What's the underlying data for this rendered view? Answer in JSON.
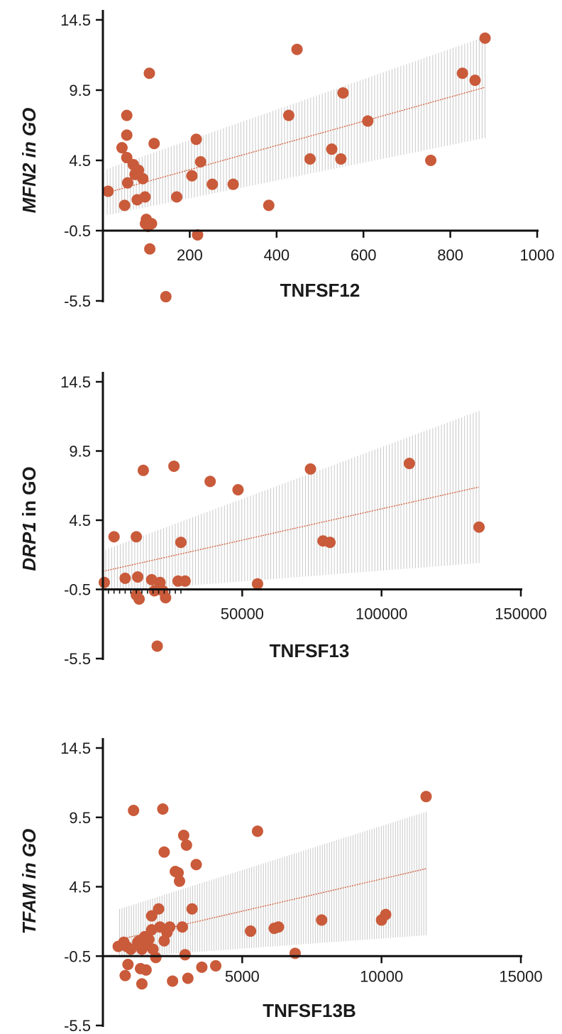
{
  "colors": {
    "point": "#c95a3a",
    "fit": "#d35b38",
    "band": "#c8c8c8",
    "axis": "#111111"
  },
  "chart_data": [
    {
      "type": "scatter",
      "ylabel_italic": "MFN2 in GO",
      "ylabel_plain": "",
      "xlabel": "TNFSF12",
      "xlim": [
        0,
        1000
      ],
      "ylim": [
        -5.5,
        14.5
      ],
      "x_crosses_y_at": -0.5,
      "yticks": [
        14.5,
        9.5,
        4.5,
        -0.5,
        -5.5
      ],
      "ytick_labels": [
        "14.5",
        "9.5",
        "4.5",
        "-0.5",
        "-5.5"
      ],
      "xticks": [
        200,
        400,
        600,
        800,
        1000
      ],
      "xtick_labels": [
        "200",
        "400",
        "600",
        "800",
        "1000"
      ],
      "minor_xticks": [],
      "fit": {
        "x": [
          10,
          880
        ],
        "y": [
          2.2,
          9.7
        ],
        "ci_low_start": 0.6,
        "ci_high_start": 3.9,
        "ci_low_end": 6.1,
        "ci_high_end": 13.3
      },
      "points": [
        [
          12,
          2.3
        ],
        [
          44,
          5.4
        ],
        [
          50,
          1.3
        ],
        [
          55,
          7.7
        ],
        [
          55,
          6.3
        ],
        [
          55,
          4.7
        ],
        [
          57,
          2.9
        ],
        [
          70,
          4.2
        ],
        [
          74,
          3.5
        ],
        [
          79,
          1.7
        ],
        [
          82,
          3.8
        ],
        [
          92,
          3.2
        ],
        [
          97,
          1.9
        ],
        [
          98,
          0.0
        ],
        [
          100,
          0.3
        ],
        [
          104,
          -0.2
        ],
        [
          107,
          10.7
        ],
        [
          108,
          -1.8
        ],
        [
          112,
          0.0
        ],
        [
          118,
          5.7
        ],
        [
          145,
          -5.2
        ],
        [
          170,
          1.9
        ],
        [
          205,
          3.4
        ],
        [
          215,
          6.0
        ],
        [
          218,
          -0.8
        ],
        [
          225,
          4.4
        ],
        [
          252,
          2.8
        ],
        [
          300,
          2.8
        ],
        [
          382,
          1.3
        ],
        [
          428,
          7.7
        ],
        [
          447,
          12.4
        ],
        [
          477,
          4.6
        ],
        [
          527,
          5.3
        ],
        [
          548,
          4.6
        ],
        [
          553,
          9.3
        ],
        [
          610,
          7.3
        ],
        [
          755,
          4.5
        ],
        [
          828,
          10.7
        ],
        [
          857,
          10.2
        ],
        [
          880,
          13.2
        ]
      ]
    },
    {
      "type": "scatter",
      "ylabel_italic": "DRP1",
      "ylabel_plain": " in GO",
      "xlabel": "TNFSF13",
      "xlim": [
        0,
        150000
      ],
      "ylim": [
        -5.5,
        14.5
      ],
      "x_crosses_y_at": -0.5,
      "yticks": [
        14.5,
        9.5,
        4.5,
        -0.5,
        -5.5
      ],
      "ytick_labels": [
        "14.5",
        "9.5",
        "4.5",
        "-0.5",
        "-5.5"
      ],
      "xticks": [
        50000,
        100000,
        150000
      ],
      "xtick_labels": [
        "50000",
        "100000",
        "150000"
      ],
      "minor_xticks": [
        2000,
        4000,
        6000,
        8000,
        10000,
        12000,
        14000,
        16000,
        18000,
        20000,
        22000,
        24000,
        26000,
        28000
      ],
      "fit": {
        "x": [
          0,
          135000
        ],
        "y": [
          0.8,
          6.9
        ],
        "ci_low_start": -0.7,
        "ci_high_start": 2.3,
        "ci_low_end": 1.4,
        "ci_high_end": 12.4
      },
      "points": [
        [
          500,
          0.0
        ],
        [
          4000,
          3.3
        ],
        [
          8000,
          0.3
        ],
        [
          12000,
          3.3
        ],
        [
          12000,
          -0.9
        ],
        [
          12500,
          0.4
        ],
        [
          13000,
          -1.2
        ],
        [
          14500,
          8.1
        ],
        [
          17500,
          0.2
        ],
        [
          18500,
          -0.6
        ],
        [
          19500,
          -4.6
        ],
        [
          20000,
          -0.5
        ],
        [
          20500,
          0.0
        ],
        [
          21500,
          -0.6
        ],
        [
          22500,
          -1.1
        ],
        [
          25500,
          8.4
        ],
        [
          27000,
          0.1
        ],
        [
          28000,
          2.9
        ],
        [
          29500,
          0.1
        ],
        [
          38500,
          7.3
        ],
        [
          48500,
          6.7
        ],
        [
          55500,
          -0.1
        ],
        [
          74500,
          8.2
        ],
        [
          79000,
          3.0
        ],
        [
          81500,
          2.9
        ],
        [
          110000,
          8.6
        ],
        [
          135000,
          4.0
        ]
      ]
    },
    {
      "type": "scatter",
      "ylabel_italic": "TFAM in GO",
      "ylabel_plain": "",
      "xlabel": "TNFSF13B",
      "xlim": [
        0,
        15000
      ],
      "ylim": [
        -5.5,
        14.5
      ],
      "x_crosses_y_at": -0.5,
      "yticks": [
        14.5,
        9.5,
        4.5,
        -0.5,
        -5.5
      ],
      "ytick_labels": [
        "14.5",
        "9.5",
        "4.5",
        "-0.5",
        "-5.5"
      ],
      "xticks": [
        5000,
        10000,
        15000
      ],
      "xtick_labels": [
        "5000",
        "10000",
        "15000"
      ],
      "minor_xticks": [],
      "fit": {
        "x": [
          600,
          11600
        ],
        "y": [
          0.7,
          5.8
        ],
        "ci_low_start": -0.6,
        "ci_high_start": 2.9,
        "ci_low_end": 1.0,
        "ci_high_end": 9.9
      },
      "points": [
        [
          550,
          0.2
        ],
        [
          750,
          0.5
        ],
        [
          800,
          -1.9
        ],
        [
          850,
          0.2
        ],
        [
          900,
          -1.1
        ],
        [
          1000,
          0.0
        ],
        [
          1100,
          10.0
        ],
        [
          1250,
          0.5
        ],
        [
          1300,
          0.6
        ],
        [
          1350,
          -1.4
        ],
        [
          1400,
          -2.5
        ],
        [
          1400,
          0.0
        ],
        [
          1500,
          0.9
        ],
        [
          1550,
          0.3
        ],
        [
          1550,
          -1.5
        ],
        [
          1650,
          0.7
        ],
        [
          1750,
          1.4
        ],
        [
          1750,
          2.4
        ],
        [
          1800,
          0.0
        ],
        [
          1900,
          -0.6
        ],
        [
          2000,
          2.9
        ],
        [
          2050,
          1.6
        ],
        [
          2150,
          10.1
        ],
        [
          2200,
          0.6
        ],
        [
          2200,
          7.0
        ],
        [
          2300,
          1.2
        ],
        [
          2400,
          1.6
        ],
        [
          2500,
          -2.3
        ],
        [
          2600,
          5.6
        ],
        [
          2700,
          5.5
        ],
        [
          2750,
          4.9
        ],
        [
          2850,
          1.6
        ],
        [
          2900,
          8.2
        ],
        [
          2950,
          -0.4
        ],
        [
          3000,
          7.5
        ],
        [
          3050,
          -2.1
        ],
        [
          3200,
          2.9
        ],
        [
          3350,
          6.1
        ],
        [
          3550,
          -1.3
        ],
        [
          4050,
          -1.2
        ],
        [
          5300,
          1.3
        ],
        [
          5550,
          8.5
        ],
        [
          6150,
          1.5
        ],
        [
          6300,
          1.6
        ],
        [
          6900,
          -0.3
        ],
        [
          7850,
          2.1
        ],
        [
          10000,
          2.1
        ],
        [
          10150,
          2.5
        ],
        [
          11600,
          11.0
        ]
      ]
    }
  ]
}
